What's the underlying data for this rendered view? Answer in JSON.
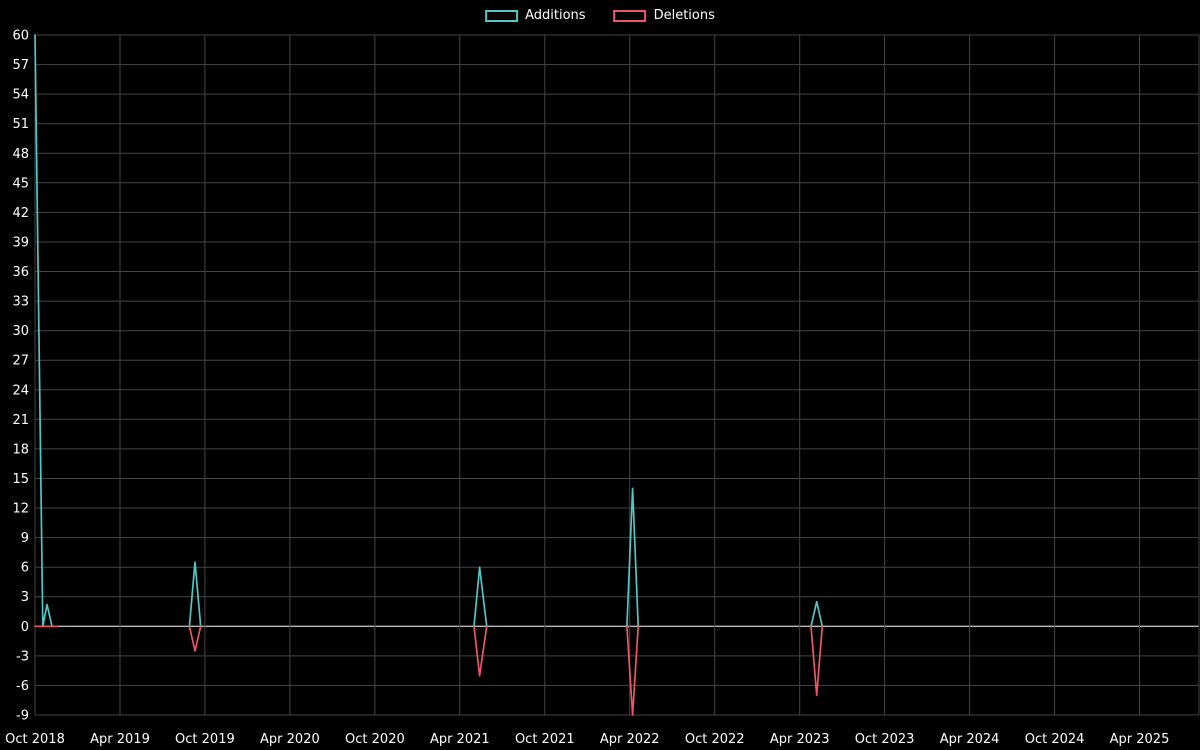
{
  "page": {
    "background": "#000000",
    "text_color": "#ffffff"
  },
  "chart_data": {
    "type": "line",
    "title": "",
    "xlabel": "",
    "ylabel": "",
    "legend_position": "top-center",
    "grid": true,
    "grid_color": "#454545",
    "zero_line_color": "#b9b9b9",
    "tick_label_color": "#ffffff",
    "x_unit": "months since Oct 2018",
    "x_tick_months": [
      0,
      6,
      12,
      18,
      24,
      30,
      36,
      42,
      48,
      54,
      60,
      66,
      72,
      78
    ],
    "x_tick_labels": [
      "Oct 2018",
      "Apr 2019",
      "Oct 2019",
      "Apr 2020",
      "Oct 2020",
      "Apr 2021",
      "Oct 2021",
      "Apr 2022",
      "Oct 2022",
      "Apr 2023",
      "Oct 2023",
      "Apr 2024",
      "Oct 2024",
      "Apr 2025"
    ],
    "xlim": [
      0,
      82.2
    ],
    "ylim": [
      -9,
      60
    ],
    "y_ticks": [
      -9,
      -6,
      -3,
      0,
      3,
      6,
      9,
      12,
      15,
      18,
      21,
      24,
      27,
      30,
      33,
      36,
      39,
      42,
      45,
      48,
      51,
      54,
      57,
      60
    ],
    "series": [
      {
        "name": "Additions",
        "color": "#52c5c5",
        "segments": [
          [
            [
              0,
              60
            ],
            [
              0.55,
              0
            ],
            [
              0.85,
              2.2
            ],
            [
              1.2,
              0
            ],
            [
              1.6,
              0
            ]
          ],
          [
            [
              10.9,
              0
            ],
            [
              11.3,
              6.5
            ],
            [
              11.7,
              0
            ]
          ],
          [
            [
              31.0,
              0
            ],
            [
              31.4,
              6.0
            ],
            [
              31.9,
              0
            ]
          ],
          [
            [
              41.8,
              0
            ],
            [
              42.2,
              14.0
            ],
            [
              42.6,
              0
            ]
          ],
          [
            [
              54.8,
              0
            ],
            [
              55.2,
              2.5
            ],
            [
              55.6,
              0
            ]
          ]
        ]
      },
      {
        "name": "Deletions",
        "color": "#ee5566",
        "segments": [
          [
            [
              0,
              0
            ],
            [
              1.6,
              0
            ]
          ],
          [
            [
              10.9,
              0
            ],
            [
              11.3,
              -2.5
            ],
            [
              11.7,
              0
            ]
          ],
          [
            [
              31.0,
              0
            ],
            [
              31.4,
              -5.0
            ],
            [
              31.9,
              0
            ]
          ],
          [
            [
              41.8,
              0
            ],
            [
              42.2,
              -9.0
            ],
            [
              42.6,
              0
            ]
          ],
          [
            [
              54.8,
              0
            ],
            [
              55.2,
              -7.0
            ],
            [
              55.6,
              0
            ]
          ]
        ]
      }
    ]
  }
}
